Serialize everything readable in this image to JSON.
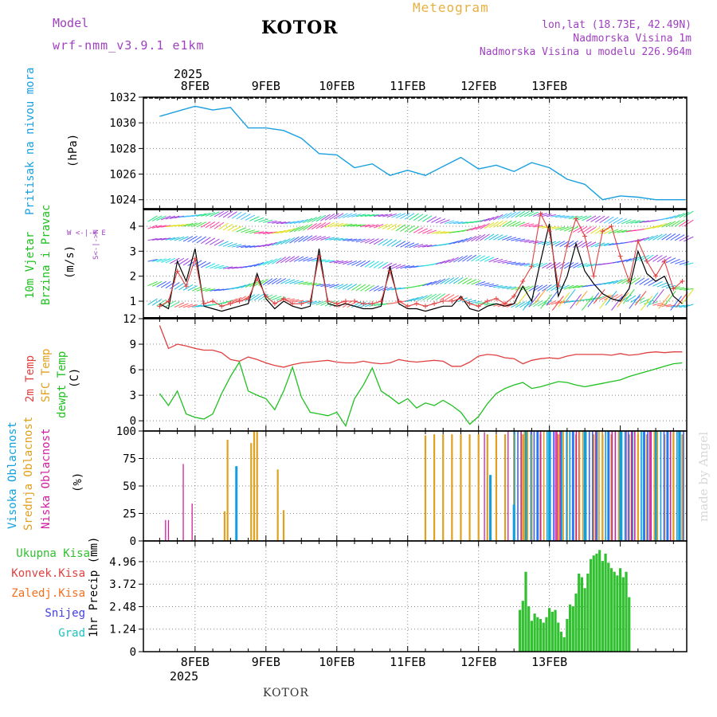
{
  "header": {
    "model_label": "Model",
    "model_name": "wrf-nmm_v3.9.1  e1km",
    "station": "KOTOR",
    "meteogram": "Meteogram",
    "lonlat": "lon,lat (18.73E, 42.49N)",
    "elevation": "Nadmorska Visina 1m",
    "model_elevation": "Nadmorska Visina u modelu 226.964m",
    "footer_station": "KOTOR",
    "credit": "made by Angel",
    "year_top": "2025",
    "year_bottom": "2025"
  },
  "colors": {
    "pressure": "#1aa0e0",
    "temp2m": "#e04040",
    "sfc": "#e0a020",
    "dewpt": "#20c020",
    "vis": "#10a0e0",
    "mid": "#e0a020",
    "low": "#d020a0",
    "precip": "#30c030",
    "wind_speed": "#000000",
    "gust": "#e04040"
  },
  "panels": {
    "pressure": {
      "label": "Pritisak na nivou mora",
      "unit": "(hPa)"
    },
    "wind": {
      "label1": "10m Vjetar",
      "label2": "Brzina i Pravac",
      "unit": "(m/s)",
      "compass": "W  <-|->  E",
      "compass_ns": "S<-|->N"
    },
    "temp": {
      "label1": "2m Temp",
      "label2": "SFC Temp",
      "label3": "dewpt Temp",
      "unit": "(C)"
    },
    "cloud": {
      "label1": "Visoka Oblacnost",
      "label2": "Srednja Oblacnost",
      "label3": "Niska Oblacnost",
      "unit": "(%)"
    },
    "precip": {
      "legend": [
        "Ukupna Kisa",
        "Konvek.Kisa",
        "Zaledj.Kisa",
        "Snijeg",
        "Grad"
      ],
      "unit": "1hr Precip (mm)"
    }
  },
  "chart_data": [
    {
      "type": "line",
      "title": "Pritisak na nivou mora",
      "ylabel": "(hPa)",
      "x_labels": [
        "8FEB",
        "9FEB",
        "10FEB",
        "11FEB",
        "12FEB",
        "13FEB"
      ],
      "y_ticks": [
        1024,
        1026,
        1028,
        1030,
        1032
      ],
      "ylim": [
        1023.3,
        1032
      ],
      "hours": [
        0,
        6,
        12,
        18,
        24,
        30,
        36,
        42,
        48,
        54,
        60,
        66,
        72,
        78,
        84,
        90,
        96,
        102,
        108,
        114,
        120,
        126,
        132,
        138,
        144,
        150,
        156,
        162,
        168,
        174,
        178
      ],
      "values": [
        1030.5,
        1030.9,
        1031.3,
        1031.0,
        1031.2,
        1029.6,
        1029.6,
        1029.4,
        1028.8,
        1027.6,
        1027.5,
        1026.5,
        1026.8,
        1025.9,
        1026.3,
        1025.9,
        1026.6,
        1027.3,
        1026.4,
        1026.7,
        1026.2,
        1026.9,
        1026.5,
        1025.6,
        1025.2,
        1024.0,
        1024.3,
        1024.2,
        1024.0,
        1024.0,
        1024.0
      ]
    },
    {
      "type": "line",
      "title": "10m Vjetar Brzina i Pravac",
      "ylabel": "(m/s)",
      "y_ticks": [
        1,
        2,
        3,
        4
      ],
      "ylim": [
        0.3,
        4.7
      ],
      "hours": [
        0,
        3,
        6,
        9,
        12,
        15,
        18,
        21,
        24,
        27,
        30,
        33,
        36,
        39,
        42,
        45,
        48,
        51,
        54,
        57,
        60,
        63,
        66,
        69,
        72,
        75,
        78,
        81,
        84,
        87,
        90,
        93,
        96,
        99,
        102,
        105,
        108,
        111,
        114,
        117,
        120,
        123,
        126,
        129,
        132,
        135,
        138,
        141,
        144,
        147,
        150,
        153,
        156,
        159,
        162,
        165,
        168,
        171,
        174,
        177
      ],
      "series": [
        {
          "name": "speed",
          "values": [
            0.9,
            0.7,
            2.6,
            1.8,
            3.1,
            0.8,
            0.7,
            0.6,
            0.7,
            0.8,
            0.9,
            2.1,
            1.1,
            0.7,
            1.0,
            0.8,
            0.7,
            0.8,
            3.1,
            0.9,
            0.8,
            0.9,
            0.8,
            0.7,
            0.7,
            0.8,
            2.4,
            0.9,
            0.7,
            0.7,
            0.6,
            0.7,
            0.8,
            0.8,
            1.2,
            0.7,
            0.6,
            0.8,
            0.9,
            0.8,
            0.9,
            1.6,
            1.0,
            2.6,
            4.1,
            1.2,
            2.0,
            3.3,
            2.2,
            1.7,
            1.3,
            1.1,
            1.0,
            1.5,
            3.0,
            2.1,
            1.8,
            2.0,
            1.2,
            0.9
          ]
        },
        {
          "name": "gust",
          "values": [
            0.8,
            1.0,
            2.2,
            1.6,
            2.7,
            0.9,
            1.0,
            0.8,
            0.9,
            1.0,
            1.1,
            1.9,
            1.2,
            0.9,
            1.1,
            0.9,
            0.9,
            1.0,
            2.8,
            1.0,
            0.9,
            1.0,
            1.0,
            0.9,
            0.9,
            1.0,
            2.2,
            1.0,
            0.8,
            0.9,
            0.8,
            0.9,
            1.0,
            1.0,
            1.1,
            0.9,
            0.8,
            1.0,
            1.1,
            0.9,
            1.2,
            1.8,
            2.4,
            4.5,
            3.8,
            1.6,
            3.2,
            4.3,
            3.6,
            2.0,
            3.8,
            4.0,
            2.8,
            1.8,
            3.4,
            2.6,
            2.0,
            2.6,
            1.5,
            1.8
          ]
        }
      ]
    },
    {
      "type": "line",
      "title": "Temp",
      "ylabel": "(C)",
      "y_ticks": [
        0,
        3,
        6,
        9,
        12
      ],
      "ylim": [
        -1.2,
        12
      ],
      "hours": [
        0,
        3,
        6,
        9,
        12,
        15,
        18,
        21,
        24,
        27,
        30,
        33,
        36,
        39,
        42,
        45,
        48,
        51,
        54,
        57,
        60,
        63,
        66,
        69,
        72,
        75,
        78,
        81,
        84,
        87,
        90,
        93,
        96,
        99,
        102,
        105,
        108,
        111,
        114,
        117,
        120,
        123,
        126,
        129,
        132,
        135,
        138,
        141,
        144,
        147,
        150,
        153,
        156,
        159,
        162,
        165,
        168,
        171,
        174,
        177
      ],
      "series": [
        {
          "name": "2m Temp",
          "values": [
            11.2,
            8.5,
            9.0,
            8.8,
            8.5,
            8.3,
            8.3,
            8.0,
            7.2,
            7.0,
            7.5,
            7.2,
            6.8,
            6.5,
            6.3,
            6.6,
            6.8,
            6.9,
            7.0,
            7.1,
            6.9,
            6.8,
            6.8,
            7.0,
            6.8,
            6.7,
            6.8,
            7.2,
            7.0,
            6.9,
            7.0,
            7.1,
            7.0,
            6.4,
            6.4,
            6.9,
            7.6,
            7.8,
            7.7,
            7.4,
            7.3,
            6.7,
            7.1,
            7.3,
            7.4,
            7.3,
            7.6,
            7.8,
            7.8,
            7.8,
            7.8,
            7.7,
            7.9,
            7.7,
            7.8,
            8.0,
            8.1,
            8.0,
            8.1,
            8.1
          ]
        },
        {
          "name": "SFC Temp",
          "values": [
            12,
            12,
            12,
            12,
            12,
            12,
            12,
            12,
            12,
            12,
            12,
            12,
            12,
            12,
            12,
            12,
            12,
            12,
            12,
            12,
            12,
            12,
            12,
            12,
            12,
            12,
            12,
            12,
            12,
            12,
            12,
            12,
            12,
            12,
            12,
            12,
            12,
            12,
            12,
            12,
            12,
            12,
            12,
            12,
            12,
            12,
            12,
            12,
            12,
            12,
            12,
            12,
            12,
            12,
            12,
            12,
            12,
            12,
            12,
            12
          ]
        },
        {
          "name": "dewpt Temp",
          "values": [
            3.2,
            1.8,
            3.5,
            0.8,
            0.4,
            0.2,
            0.8,
            3.2,
            5.2,
            6.9,
            3.5,
            3.0,
            2.6,
            1.3,
            3.5,
            6.3,
            2.8,
            1.0,
            0.8,
            0.6,
            1.0,
            -0.6,
            2.6,
            4.2,
            6.2,
            3.5,
            2.8,
            2.0,
            2.6,
            1.5,
            2.1,
            1.8,
            2.4,
            1.8,
            1.0,
            -0.4,
            0.5,
            2.0,
            3.2,
            3.8,
            4.2,
            4.5,
            3.8,
            4.0,
            4.3,
            4.6,
            4.5,
            4.2,
            4.0,
            4.2,
            4.4,
            4.6,
            4.8,
            5.2,
            5.5,
            5.8,
            6.1,
            6.4,
            6.7,
            6.8
          ]
        }
      ]
    },
    {
      "type": "bar",
      "title": "Oblacnost",
      "ylabel": "(%)",
      "y_ticks": [
        0,
        25,
        50,
        75,
        100
      ],
      "ylim": [
        0,
        100
      ],
      "series": [
        {
          "name": "Niska Oblacnost",
          "bars": [
            [
              2,
              19
            ],
            [
              3,
              19
            ],
            [
              8,
              70
            ],
            [
              11,
              34
            ],
            [
              110,
              99
            ],
            [
              118,
              100
            ],
            [
              126,
              100
            ],
            [
              134,
              100
            ],
            [
              142,
              100
            ],
            [
              150,
              100
            ],
            [
              158,
              100
            ],
            [
              166,
              100
            ],
            [
              174,
              100
            ]
          ]
        },
        {
          "name": "Srednja Oblacnost",
          "bars": [
            [
              22,
              27
            ],
            [
              23,
              92
            ],
            [
              31,
              89
            ],
            [
              32,
              100
            ],
            [
              33,
              100
            ],
            [
              40,
              65
            ],
            [
              42,
              28
            ],
            [
              90,
              96
            ],
            [
              93,
              97
            ],
            [
              96,
              97
            ],
            [
              99,
              97
            ],
            [
              102,
              97
            ],
            [
              105,
              97
            ],
            [
              108,
              97
            ],
            [
              111,
              97
            ],
            [
              114,
              97
            ],
            [
              117,
              97
            ],
            [
              120,
              97
            ],
            [
              123,
              97
            ],
            [
              126,
              97
            ],
            [
              129,
              97
            ],
            [
              132,
              97
            ],
            [
              135,
              97
            ],
            [
              138,
              97
            ],
            [
              141,
              97
            ],
            [
              144,
              97
            ],
            [
              147,
              97
            ],
            [
              150,
              97
            ],
            [
              153,
              97
            ],
            [
              156,
              97
            ],
            [
              159,
              97
            ],
            [
              162,
              97
            ],
            [
              165,
              97
            ],
            [
              168,
              97
            ],
            [
              171,
              97
            ],
            [
              174,
              97
            ],
            [
              177,
              97
            ]
          ]
        },
        {
          "name": "Visoka Oblacnost",
          "bars": [
            [
              26,
              68
            ],
            [
              112,
              60
            ],
            [
              120,
              33
            ],
            [
              124,
              100
            ],
            [
              128,
              100
            ],
            [
              132,
              100
            ],
            [
              136,
              100
            ],
            [
              140,
              100
            ],
            [
              144,
              100
            ],
            [
              148,
              100
            ],
            [
              152,
              100
            ],
            [
              156,
              100
            ],
            [
              160,
              100
            ],
            [
              164,
              100
            ],
            [
              168,
              100
            ],
            [
              172,
              100
            ],
            [
              176,
              100
            ]
          ]
        }
      ]
    },
    {
      "type": "bar",
      "title": "1hr Precip",
      "ylabel": "1hr Precip (mm)",
      "y_ticks": [
        0,
        1.24,
        2.48,
        3.72,
        4.96
      ],
      "ylim": [
        0,
        6.1
      ],
      "series": [
        {
          "name": "Ukupna Kisa",
          "bars": [
            [
              122,
              2.3
            ],
            [
              123,
              2.8
            ],
            [
              124,
              4.4
            ],
            [
              125,
              2.5
            ],
            [
              126,
              1.7
            ],
            [
              127,
              2.1
            ],
            [
              128,
              1.9
            ],
            [
              129,
              1.8
            ],
            [
              130,
              1.6
            ],
            [
              131,
              1.9
            ],
            [
              132,
              2.4
            ],
            [
              133,
              2.2
            ],
            [
              134,
              2.3
            ],
            [
              135,
              1.6
            ],
            [
              136,
              1.1
            ],
            [
              137,
              0.8
            ],
            [
              138,
              1.8
            ],
            [
              139,
              2.6
            ],
            [
              140,
              2.5
            ],
            [
              141,
              3.2
            ],
            [
              142,
              4.3
            ],
            [
              143,
              4.1
            ],
            [
              144,
              3.5
            ],
            [
              145,
              4.3
            ],
            [
              146,
              5.1
            ],
            [
              147,
              5.3
            ],
            [
              148,
              5.4
            ],
            [
              149,
              5.6
            ],
            [
              150,
              5.0
            ],
            [
              151,
              5.4
            ],
            [
              152,
              4.9
            ],
            [
              153,
              4.6
            ],
            [
              154,
              4.4
            ],
            [
              155,
              4.2
            ],
            [
              156,
              4.6
            ],
            [
              157,
              4.1
            ],
            [
              158,
              4.4
            ],
            [
              159,
              3.0
            ]
          ]
        }
      ]
    }
  ]
}
